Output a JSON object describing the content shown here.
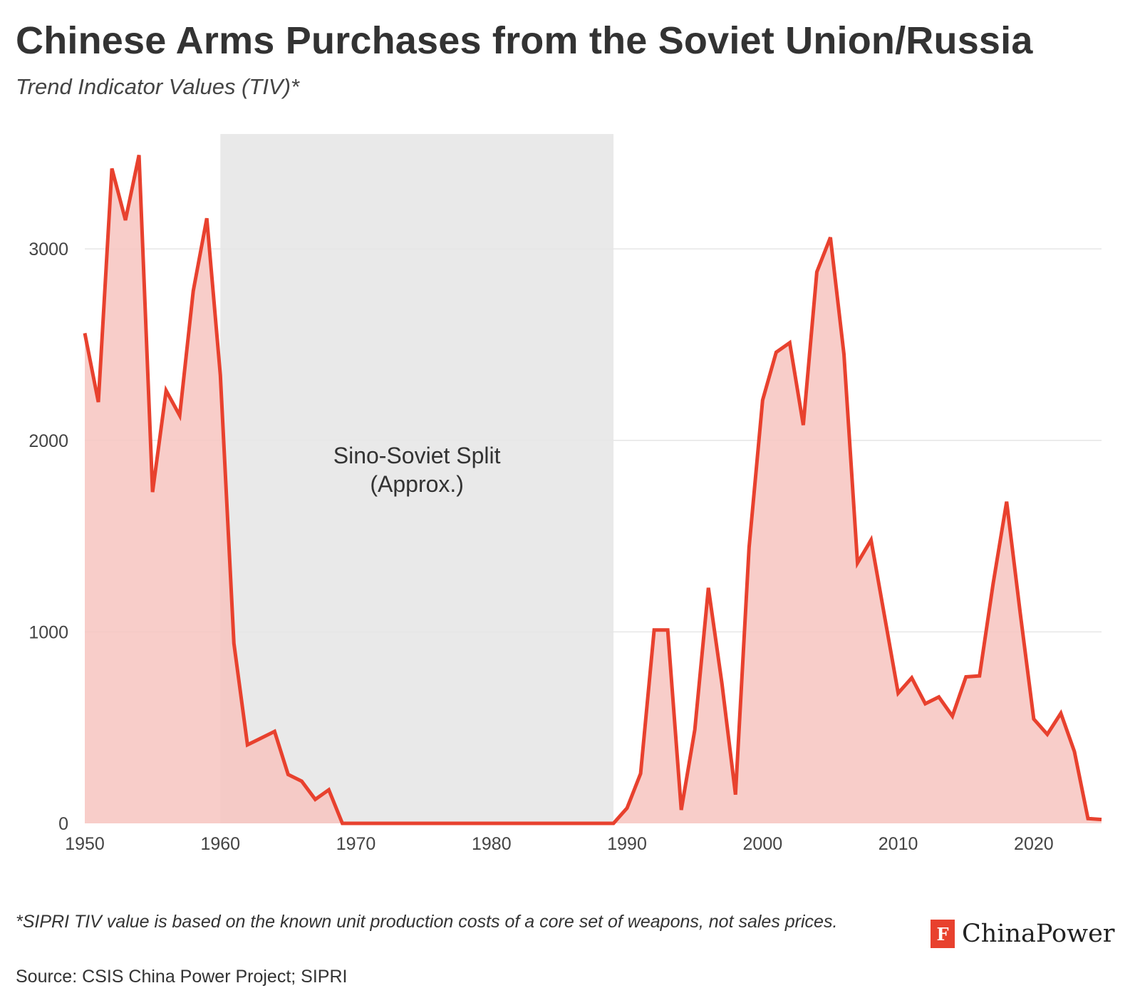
{
  "header": {
    "title": "Chinese Arms Purchases from the Soviet Union/Russia",
    "subtitle": "Trend Indicator Values (TIV)*"
  },
  "footer": {
    "footnote": "*SIPRI TIV value is based on the known unit production costs of a core set of weapons, not sales prices.",
    "source": "Source: CSIS China Power Project; SIPRI",
    "brand": "ChinaPower"
  },
  "colors": {
    "line": "#e8412e",
    "area": "#f7c4c0",
    "band": "#e9e9e9",
    "grid": "#e6e6e6",
    "text": "#333333"
  },
  "chart_data": {
    "type": "area",
    "x": [
      1950,
      1951,
      1952,
      1953,
      1954,
      1955,
      1956,
      1957,
      1958,
      1959,
      1960,
      1961,
      1962,
      1963,
      1964,
      1965,
      1966,
      1967,
      1968,
      1969,
      1970,
      1971,
      1972,
      1973,
      1974,
      1975,
      1976,
      1977,
      1978,
      1979,
      1980,
      1981,
      1982,
      1983,
      1984,
      1985,
      1986,
      1987,
      1988,
      1989,
      1990,
      1991,
      1992,
      1993,
      1994,
      1995,
      1996,
      1997,
      1998,
      1999,
      2000,
      2001,
      2002,
      2003,
      2004,
      2005,
      2006,
      2007,
      2008,
      2009,
      2010,
      2011,
      2012,
      2013,
      2014,
      2015,
      2016,
      2017,
      2018,
      2019,
      2020,
      2021,
      2022,
      2023,
      2024,
      2025
    ],
    "values": [
      2560,
      2200,
      3420,
      3150,
      3490,
      1730,
      2260,
      2130,
      2780,
      3160,
      2340,
      940,
      410,
      445,
      480,
      255,
      220,
      125,
      175,
      0,
      0,
      0,
      0,
      0,
      0,
      0,
      0,
      0,
      0,
      0,
      0,
      0,
      0,
      0,
      0,
      0,
      0,
      0,
      0,
      0,
      80,
      260,
      1010,
      1010,
      70,
      490,
      1230,
      730,
      150,
      1440,
      2210,
      2460,
      2510,
      2080,
      2880,
      3060,
      2450,
      1360,
      1480,
      1080,
      680,
      760,
      625,
      660,
      560,
      765,
      770,
      1250,
      1680,
      1100,
      545,
      465,
      575,
      375,
      25,
      20
    ],
    "xlim": [
      1950,
      2025
    ],
    "ylim": [
      0,
      3600
    ],
    "xticks": [
      1950,
      1960,
      1970,
      1980,
      1990,
      2000,
      2010,
      2020
    ],
    "yticks": [
      0,
      1000,
      2000,
      3000
    ],
    "grid": true,
    "annotation": {
      "label_line1": "Sino-Soviet Split",
      "label_line2": "(Approx.)",
      "start": 1960,
      "end": 1989
    }
  }
}
